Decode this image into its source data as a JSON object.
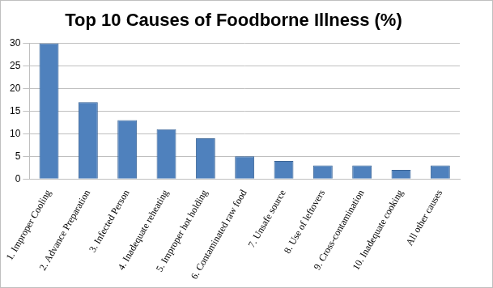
{
  "chart_data": {
    "type": "bar",
    "title": "Top 10 Causes of Foodborne Illness (%)",
    "categories": [
      "1. Improper Cooling",
      "2. Advance Preparation",
      "3. Infected Person",
      "4. Inadequate reheating",
      "5. Improper hot holding",
      "6. Contaminated raw food",
      "7. Unsafe source",
      "8. Use of leftovers",
      "9. Cross-contamination",
      "10. Inadequate cooking",
      "All other causes"
    ],
    "values": [
      30,
      17,
      13,
      11,
      9,
      5,
      4,
      3,
      3,
      2,
      3
    ],
    "color": "#4f81bd",
    "ylim": [
      0,
      30
    ],
    "yticks": [
      0,
      5,
      10,
      15,
      20,
      25,
      30
    ],
    "grid": true
  }
}
